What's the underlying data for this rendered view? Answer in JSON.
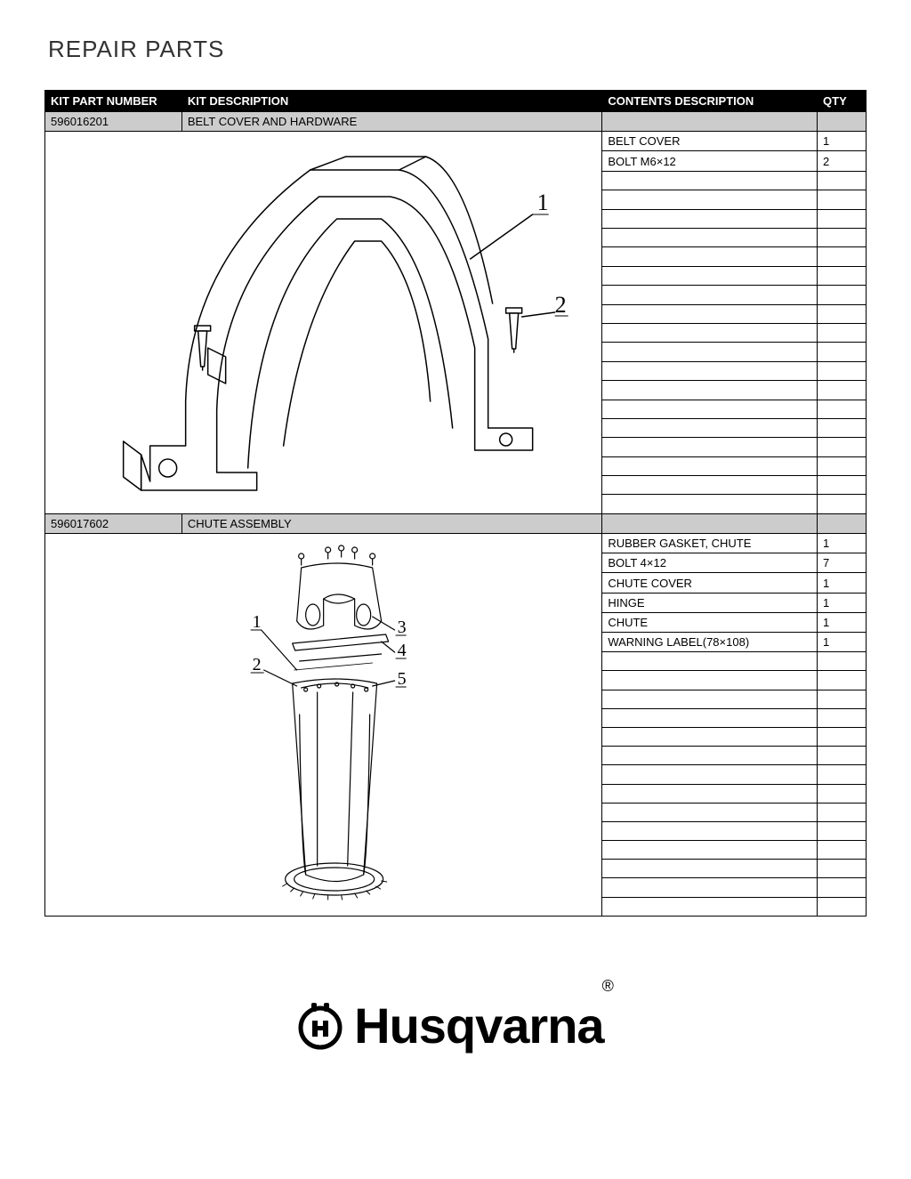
{
  "page_title": "REPAIR PARTS",
  "brand": "Husqvarna",
  "columns": {
    "part": "KIT PART NUMBER",
    "kit": "KIT DESCRIPTION",
    "contents": "CONTENTS DESCRIPTION",
    "qty": "QTY"
  },
  "kits": [
    {
      "part_number": "596016201",
      "description": "BELT COVER AND HARDWARE",
      "diagram_rows": 20,
      "contents": [
        {
          "desc": "BELT COVER",
          "qty": "1"
        },
        {
          "desc": "BOLT M6×12",
          "qty": "2"
        }
      ],
      "callouts": [
        "1",
        "2"
      ]
    },
    {
      "part_number": "596017602",
      "description": "CHUTE ASSEMBLY",
      "diagram_rows": 20,
      "contents": [
        {
          "desc": "RUBBER GASKET, CHUTE",
          "qty": "1"
        },
        {
          "desc": "BOLT 4×12",
          "qty": "7"
        },
        {
          "desc": "CHUTE COVER",
          "qty": "1"
        },
        {
          "desc": "HINGE",
          "qty": "1"
        },
        {
          "desc": "CHUTE",
          "qty": "1"
        },
        {
          "desc": "WARNING LABEL(78×108)",
          "qty": "1"
        }
      ],
      "callouts": [
        "1",
        "2",
        "3",
        "4",
        "5"
      ]
    }
  ],
  "colors": {
    "header_bg": "#000000",
    "header_fg": "#ffffff",
    "kit_bg": "#cccccc",
    "border": "#000000",
    "page_bg": "#ffffff"
  }
}
